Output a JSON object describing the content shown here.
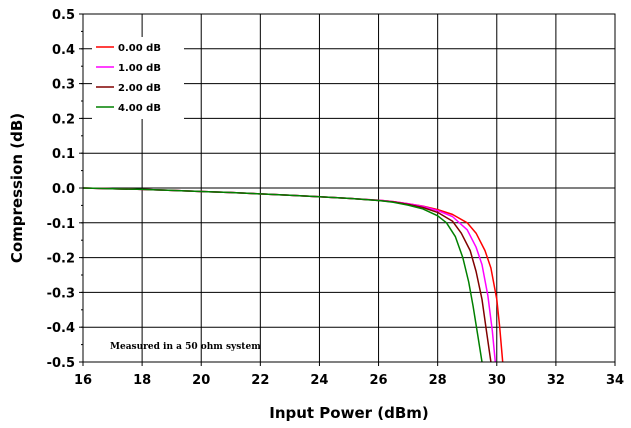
{
  "chart_data": {
    "type": "line",
    "xlabel": "Input Power (dBm)",
    "ylabel": "Compression (dB)",
    "xlim": [
      16,
      34
    ],
    "ylim": [
      -0.5,
      0.5
    ],
    "x_ticks": [
      16,
      18,
      20,
      22,
      24,
      26,
      28,
      30,
      32,
      34
    ],
    "y_ticks": [
      0.5,
      0.4,
      0.3,
      0.2,
      0.1,
      0.0,
      -0.1,
      -0.2,
      -0.3,
      -0.4,
      -0.5
    ],
    "x_tick_labels": [
      "16",
      "18",
      "20",
      "22",
      "24",
      "26",
      "28",
      "30",
      "32",
      "34"
    ],
    "y_tick_labels": [
      "0.5",
      "0.4",
      "0.3",
      "0.2",
      "0.1",
      "0.0",
      "-0.1",
      "-0.2",
      "-0.3",
      "-0.4",
      "-0.5"
    ],
    "grid": true,
    "legend_position": "top-left",
    "annotation": "Measured in a 50 ohm system",
    "series": [
      {
        "name": "0.00 dB",
        "color": "#ff0000",
        "x": [
          16,
          17,
          18,
          19,
          20,
          21,
          22,
          23,
          24,
          25,
          26,
          26.5,
          27,
          27.5,
          28,
          28.5,
          29,
          29.3,
          29.6,
          29.8,
          30.0,
          30.1,
          30.2
        ],
        "y": [
          0,
          -0.002,
          -0.004,
          -0.007,
          -0.01,
          -0.013,
          -0.017,
          -0.021,
          -0.025,
          -0.03,
          -0.035,
          -0.039,
          -0.045,
          -0.052,
          -0.062,
          -0.076,
          -0.1,
          -0.13,
          -0.18,
          -0.23,
          -0.32,
          -0.4,
          -0.5
        ]
      },
      {
        "name": "1.00 dB",
        "color": "#ff00ff",
        "x": [
          16,
          17,
          18,
          19,
          20,
          21,
          22,
          23,
          24,
          25,
          26,
          26.5,
          27,
          27.5,
          28,
          28.5,
          29,
          29.3,
          29.5,
          29.7,
          29.85,
          29.95
        ],
        "y": [
          0,
          -0.002,
          -0.004,
          -0.007,
          -0.01,
          -0.013,
          -0.017,
          -0.021,
          -0.025,
          -0.03,
          -0.035,
          -0.039,
          -0.045,
          -0.053,
          -0.065,
          -0.082,
          -0.12,
          -0.17,
          -0.22,
          -0.31,
          -0.41,
          -0.5
        ]
      },
      {
        "name": "2.00 dB",
        "color": "#800000",
        "x": [
          16,
          17,
          18,
          19,
          20,
          21,
          22,
          23,
          24,
          25,
          26,
          26.5,
          27,
          27.5,
          28,
          28.5,
          28.8,
          29.1,
          29.3,
          29.5,
          29.65,
          29.8
        ],
        "y": [
          0,
          -0.002,
          -0.004,
          -0.007,
          -0.01,
          -0.013,
          -0.017,
          -0.021,
          -0.025,
          -0.03,
          -0.036,
          -0.04,
          -0.047,
          -0.056,
          -0.07,
          -0.095,
          -0.13,
          -0.18,
          -0.24,
          -0.32,
          -0.41,
          -0.5
        ]
      },
      {
        "name": "4.00 dB",
        "color": "#008000",
        "x": [
          16,
          17,
          18,
          19,
          20,
          21,
          22,
          23,
          24,
          25,
          26,
          26.5,
          27,
          27.5,
          28,
          28.3,
          28.6,
          28.85,
          29.05,
          29.2,
          29.35,
          29.5
        ],
        "y": [
          0,
          -0.002,
          -0.004,
          -0.007,
          -0.01,
          -0.013,
          -0.017,
          -0.021,
          -0.025,
          -0.03,
          -0.036,
          -0.041,
          -0.049,
          -0.06,
          -0.08,
          -0.1,
          -0.14,
          -0.2,
          -0.27,
          -0.34,
          -0.42,
          -0.5
        ]
      }
    ]
  }
}
